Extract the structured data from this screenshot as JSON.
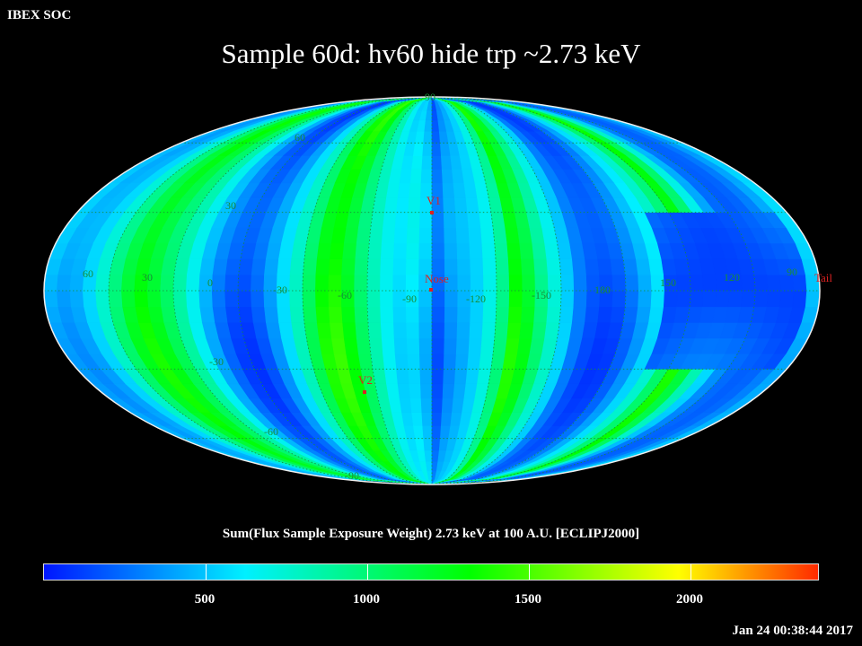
{
  "header": {
    "soc_label": "IBEX SOC",
    "title": "Sample 60d: hv60 hide trp ~2.73 keV"
  },
  "map": {
    "projection": "mollweide",
    "frame": "ECLIPJ2000",
    "center_longitude_deg": 0,
    "longitude_labels": [
      "60",
      "30",
      "0",
      "-30",
      "-60",
      "-90",
      "-120",
      "-150",
      "180",
      "150",
      "120",
      "90"
    ],
    "latitude_labels": [
      "90",
      "60",
      "30",
      "-30",
      "-60",
      "-90"
    ],
    "markers": [
      {
        "label": "V1",
        "color": "#dd2222"
      },
      {
        "label": "Nose",
        "color": "#dd2222"
      },
      {
        "label": "V2",
        "color": "#dd2222"
      },
      {
        "label": "Tail",
        "color": "#dd2222"
      }
    ],
    "grid_color": "#188c38",
    "background_color": "#000000"
  },
  "colorbar": {
    "title": "Sum(Flux Sample Exposure Weight)  2.73 keV at 100 A.U. [ECLIPJ2000]",
    "min": 0,
    "max": 2400,
    "tick_values": [
      500,
      1000,
      1500,
      2000
    ],
    "tick_labels": [
      "500",
      "1000",
      "1500",
      "2000"
    ],
    "colors": [
      "#0016ff",
      "#00f0ff",
      "#00ff00",
      "#ffff00",
      "#ff2a00"
    ]
  },
  "footer": {
    "timestamp": "Jan 24 00:38:44 2017"
  }
}
